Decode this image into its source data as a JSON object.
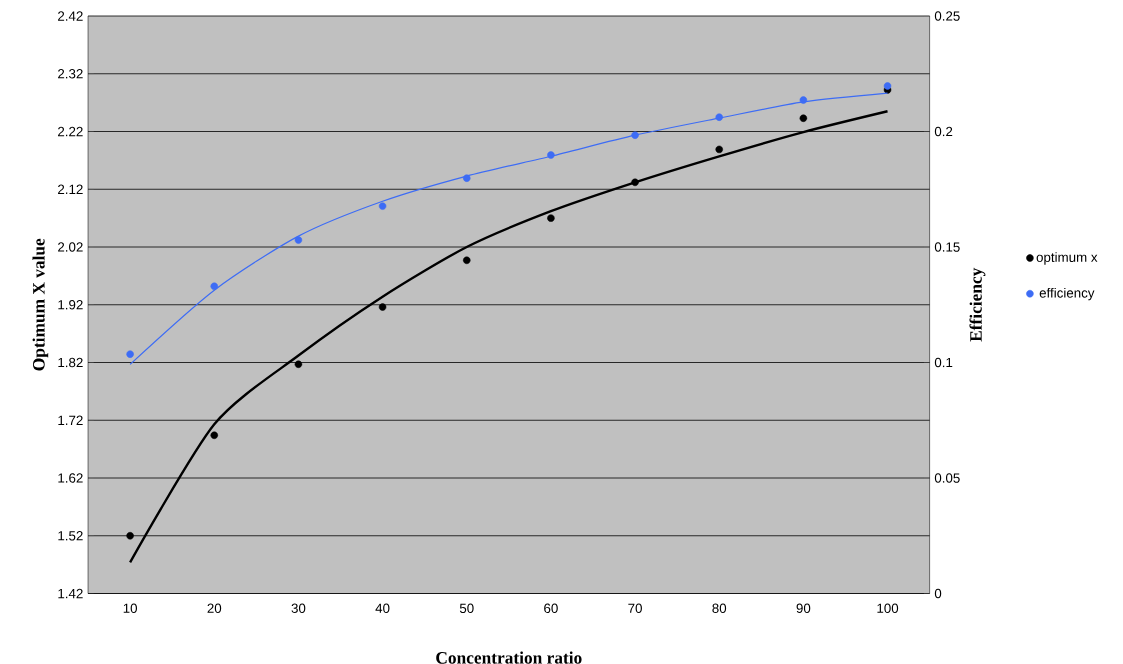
{
  "chart_data": {
    "type": "scatter",
    "xlabel": "Concentration ratio",
    "ylabel": "Optimum X value",
    "y2label": "Efficiency",
    "categories": [
      "10",
      "20",
      "30",
      "40",
      "50",
      "60",
      "70",
      "80",
      "90",
      "100"
    ],
    "series": [
      {
        "name": "optimum x",
        "type": "scatter",
        "axis": "y",
        "marker": "circle",
        "color": "#000000",
        "values": [
          1.52,
          1.694,
          1.817,
          1.916,
          1.997,
          2.07,
          2.132,
          2.189,
          2.243,
          2.292
        ]
      },
      {
        "name": "efficiency",
        "type": "scatter",
        "axis": "y2",
        "marker": "circle",
        "color": "#3d6cf5",
        "values": [
          0.1036,
          0.133,
          0.153,
          0.1677,
          0.1798,
          0.1898,
          0.1984,
          0.2062,
          0.2136,
          0.2197
        ]
      },
      {
        "type": "line",
        "axis": "y",
        "marker": "none",
        "line_style": "solid",
        "color": "#000000",
        "values": [
          1.474,
          1.713,
          1.832,
          1.934,
          2.02,
          2.082,
          2.132,
          2.177,
          2.219,
          2.255
        ]
      },
      {
        "type": "line",
        "axis": "y2",
        "marker": "none",
        "line_style": "solid",
        "color": "#3d6cf5",
        "values": [
          0.0992,
          0.1313,
          0.1547,
          0.1698,
          0.1807,
          0.1893,
          0.1984,
          0.2058,
          0.2128,
          0.2166
        ]
      }
    ],
    "ylim": [
      1.42,
      2.42
    ],
    "yticks": [
      1.42,
      1.52,
      1.62,
      1.72,
      1.82,
      1.92,
      2.02,
      2.12,
      2.22,
      2.32,
      2.42
    ],
    "y2lim": [
      0,
      0.25
    ],
    "y2ticks": [
      0,
      0.05,
      0.1,
      0.15,
      0.2,
      0.25
    ],
    "grid": "y",
    "legend": "right"
  }
}
